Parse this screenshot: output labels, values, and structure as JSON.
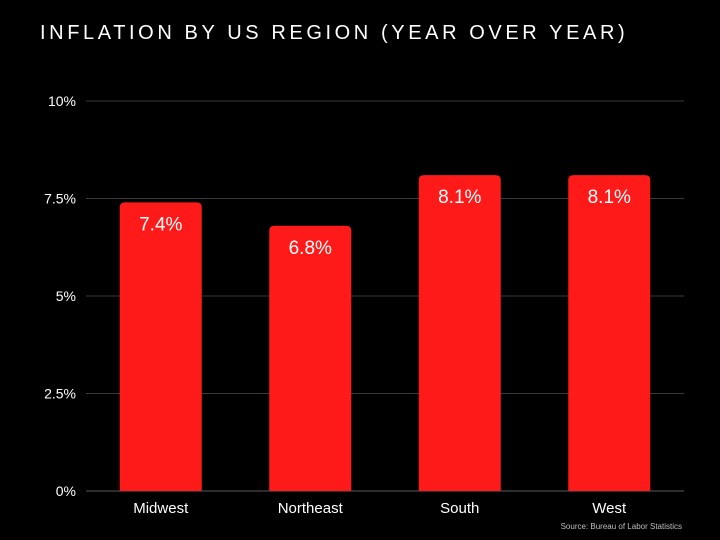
{
  "chart_data": {
    "type": "bar",
    "title": "INFLATION BY US REGION (YEAR OVER YEAR)",
    "categories": [
      "Midwest",
      "Northeast",
      "South",
      "West"
    ],
    "values": [
      7.4,
      6.8,
      8.1,
      8.1
    ],
    "value_labels": [
      "7.4%",
      "6.8%",
      "8.1%",
      "8.1%"
    ],
    "xlabel": "",
    "ylabel": "",
    "ylim": [
      0,
      10
    ],
    "yticks": [
      0,
      2.5,
      5,
      7.5,
      10
    ],
    "ytick_labels": [
      "0%",
      "2.5%",
      "5%",
      "7.5%",
      "10%"
    ],
    "grid": true,
    "legend": "none",
    "source": "Source: Bureau of Labor Statistics",
    "colors": {
      "background": "#000000",
      "bar": "#ff1a1a",
      "gridline": "#3a3a3a",
      "text": "#ffffff",
      "source_text": "#bfbfbf"
    }
  }
}
